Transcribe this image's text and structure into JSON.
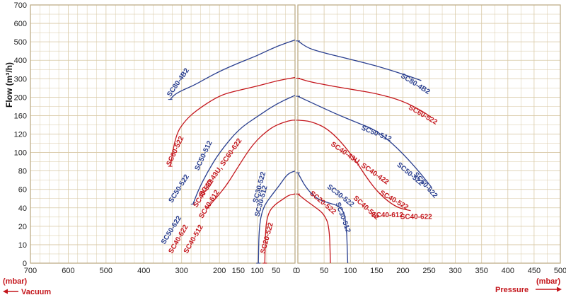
{
  "chart_data": {
    "type": "line",
    "ylabel": "Flow (m³/h)",
    "y_ticks": [
      0,
      10,
      20,
      40,
      60,
      80,
      100,
      120,
      160,
      200,
      300,
      400,
      500,
      600,
      700
    ],
    "vacuum_ticks": [
      700,
      600,
      500,
      400,
      300,
      200,
      150,
      100,
      50,
      0
    ],
    "pressure_ticks": [
      0,
      50,
      100,
      150,
      200,
      250,
      300,
      350,
      400,
      450,
      500
    ],
    "vacuum_unit": "(mbar)",
    "pressure_unit": "(mbar)",
    "vacuum_caption": "Vacuum",
    "pressure_caption": "Pressure",
    "colors": {
      "blue": "#2a3f8f",
      "red": "#c4161c",
      "grid": "#d8c9a6",
      "frame": "#b9a77e"
    },
    "series": [
      {
        "name": "SC80-4B2",
        "color": "blue",
        "side": "vacuum",
        "points": [
          [
            330,
            195
          ],
          [
            320,
            212
          ],
          [
            300,
            236
          ],
          [
            270,
            262
          ],
          [
            240,
            296
          ],
          [
            200,
            340
          ],
          [
            150,
            385
          ],
          [
            100,
            425
          ],
          [
            50,
            475
          ],
          [
            0,
            510
          ]
        ]
      },
      {
        "name": "SC80-4B2",
        "color": "blue",
        "side": "pressure",
        "points": [
          [
            0,
            505
          ],
          [
            20,
            465
          ],
          [
            50,
            440
          ],
          [
            100,
            405
          ],
          [
            150,
            370
          ],
          [
            200,
            325
          ],
          [
            235,
            290
          ]
        ]
      },
      {
        "name": "SC60-522",
        "color": "red",
        "side": "vacuum",
        "points": [
          [
            330,
            85
          ],
          [
            315,
            120
          ],
          [
            290,
            150
          ],
          [
            260,
            172
          ],
          [
            200,
            210
          ],
          [
            150,
            237
          ],
          [
            100,
            260
          ],
          [
            50,
            288
          ],
          [
            0,
            307
          ]
        ]
      },
      {
        "name": "SC60-522",
        "color": "red",
        "side": "pressure",
        "points": [
          [
            0,
            303
          ],
          [
            20,
            285
          ],
          [
            50,
            268
          ],
          [
            100,
            243
          ],
          [
            150,
            220
          ],
          [
            200,
            192
          ],
          [
            240,
            168
          ],
          [
            255,
            155
          ]
        ]
      },
      {
        "name": "SC50-522",
        "color": "blue",
        "side": "vacuum",
        "points": [
          [
            270,
            44
          ],
          [
            255,
            60
          ],
          [
            230,
            80
          ],
          [
            200,
            100
          ],
          [
            150,
            130
          ],
          [
            100,
            158
          ],
          [
            50,
            185
          ],
          [
            0,
            210
          ]
        ]
      },
      {
        "name": "SC50-512",
        "color": "blue",
        "side": "pressure",
        "points": [
          [
            0,
            205
          ],
          [
            30,
            186
          ],
          [
            70,
            165
          ],
          [
            110,
            146
          ],
          [
            150,
            128
          ],
          [
            190,
            105
          ],
          [
            230,
            80
          ],
          [
            255,
            62
          ]
        ]
      },
      {
        "name": "SC40-622",
        "color": "red",
        "side": "vacuum",
        "points": [
          [
            232,
            40
          ],
          [
            210,
            50
          ],
          [
            180,
            65
          ],
          [
            150,
            85
          ],
          [
            110,
            110
          ],
          [
            70,
            130
          ],
          [
            40,
            143
          ],
          [
            10,
            150
          ],
          [
            0,
            150
          ]
        ]
      },
      {
        "name": "SC40-43U, SC40-422",
        "color": "red",
        "side": "pressure",
        "points": [
          [
            0,
            150
          ],
          [
            25,
            148
          ],
          [
            60,
            130
          ],
          [
            100,
            100
          ],
          [
            140,
            65
          ],
          [
            165,
            50
          ],
          [
            190,
            40
          ],
          [
            215,
            37
          ]
        ]
      },
      {
        "name": "SC30-522",
        "color": "blue",
        "side": "vacuum",
        "points": [
          [
            97,
            0
          ],
          [
            95,
            20
          ],
          [
            85,
            40
          ],
          [
            65,
            52
          ],
          [
            40,
            65
          ],
          [
            20,
            77
          ],
          [
            0,
            80
          ]
        ]
      },
      {
        "name": "SC30-522",
        "color": "blue",
        "side": "pressure",
        "points": [
          [
            0,
            78
          ],
          [
            15,
            62
          ],
          [
            35,
            50
          ],
          [
            60,
            45
          ],
          [
            80,
            42
          ],
          [
            92,
            30
          ],
          [
            95,
            0
          ]
        ]
      },
      {
        "name": "SC20-522",
        "color": "red",
        "side": "vacuum",
        "points": [
          [
            80,
            0
          ],
          [
            78,
            20
          ],
          [
            70,
            35
          ],
          [
            55,
            43
          ],
          [
            30,
            50
          ],
          [
            15,
            54
          ],
          [
            0,
            55
          ]
        ]
      },
      {
        "name": "SC20-522",
        "color": "red",
        "side": "pressure",
        "points": [
          [
            0,
            55
          ],
          [
            15,
            48
          ],
          [
            35,
            40
          ],
          [
            50,
            33
          ],
          [
            60,
            20
          ],
          [
            62,
            0
          ]
        ]
      }
    ],
    "annotations": [
      {
        "text": "SC80-4B2",
        "color": "blue",
        "side": "vacuum",
        "x": 330,
        "y": 200,
        "rotate": -55
      },
      {
        "text": "SC80-4B2",
        "color": "blue",
        "side": "pressure",
        "x": 195,
        "y": 310,
        "rotate": 32
      },
      {
        "text": "SC60-522",
        "color": "red",
        "side": "vacuum",
        "x": 330,
        "y": 85,
        "rotate": -65
      },
      {
        "text": "SC60-522",
        "color": "red",
        "side": "pressure",
        "x": 210,
        "y": 175,
        "rotate": 30
      },
      {
        "text": "SC50-512",
        "color": "blue",
        "side": "vacuum",
        "x": 255,
        "y": 80,
        "rotate": -65
      },
      {
        "text": "SC50-522",
        "color": "blue",
        "side": "vacuum",
        "x": 325,
        "y": 45,
        "rotate": -58
      },
      {
        "text": "SC50-622",
        "color": "blue",
        "side": "vacuum",
        "x": 345,
        "y": 10,
        "rotate": -58
      },
      {
        "text": "SC40-43U, SC60-622",
        "color": "red",
        "side": "vacuum",
        "x": 245,
        "y": 52,
        "rotate": -55
      },
      {
        "text": "SC40-522",
        "color": "red",
        "side": "vacuum",
        "x": 260,
        "y": 40,
        "rotate": -58
      },
      {
        "text": "SC40-612",
        "color": "red",
        "side": "vacuum",
        "x": 245,
        "y": 28,
        "rotate": -58
      },
      {
        "text": "SC40-622",
        "color": "red",
        "side": "vacuum",
        "x": 325,
        "y": 5,
        "rotate": -60
      },
      {
        "text": "SC40-512",
        "color": "red",
        "side": "vacuum",
        "x": 285,
        "y": 5,
        "rotate": -60
      },
      {
        "text": "SC30-522",
        "color": "blue",
        "side": "vacuum",
        "x": 100,
        "y": 45,
        "rotate": -75
      },
      {
        "text": "SC30-512",
        "color": "blue",
        "side": "vacuum",
        "x": 95,
        "y": 30,
        "rotate": -75
      },
      {
        "text": "SC20-522",
        "color": "red",
        "side": "vacuum",
        "x": 80,
        "y": 5,
        "rotate": -75
      },
      {
        "text": "SC50-512",
        "color": "blue",
        "side": "pressure",
        "x": 120,
        "y": 130,
        "rotate": 22
      },
      {
        "text": "SC50-522",
        "color": "blue",
        "side": "pressure",
        "x": 188,
        "y": 86,
        "rotate": 40
      },
      {
        "text": "SC50-622",
        "color": "blue",
        "side": "pressure",
        "x": 220,
        "y": 76,
        "rotate": 48
      },
      {
        "text": "SC40-43U, SC40-422",
        "color": "red",
        "side": "pressure",
        "x": 62,
        "y": 108,
        "rotate": 35
      },
      {
        "text": "SC40-512",
        "color": "red",
        "side": "pressure",
        "x": 105,
        "y": 50,
        "rotate": 42
      },
      {
        "text": "SC40-522",
        "color": "red",
        "side": "pressure",
        "x": 155,
        "y": 55,
        "rotate": 30
      },
      {
        "text": "SC40-612",
        "color": "red",
        "side": "pressure",
        "x": 140,
        "y": 30,
        "rotate": 0
      },
      {
        "text": "SC40-622",
        "color": "red",
        "side": "pressure",
        "x": 195,
        "y": 28,
        "rotate": 0
      },
      {
        "text": "SC30-522",
        "color": "blue",
        "side": "pressure",
        "x": 55,
        "y": 62,
        "rotate": 38
      },
      {
        "text": "SC30-512",
        "color": "blue",
        "side": "pressure",
        "x": 72,
        "y": 45,
        "rotate": 70
      },
      {
        "text": "SC20-522",
        "color": "red",
        "side": "pressure",
        "x": 22,
        "y": 55,
        "rotate": 40
      }
    ]
  }
}
